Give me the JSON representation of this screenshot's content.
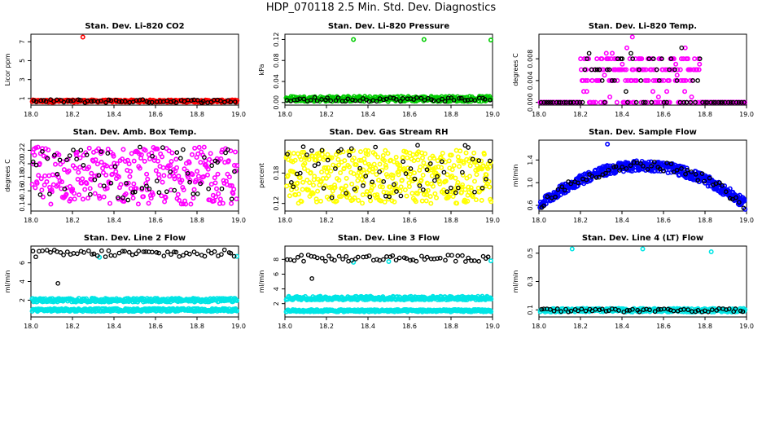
{
  "page_title": "HDP_070118  2.5 Min. Std. Dev. Diagnostics",
  "chart_data": [
    {
      "type": "scatter",
      "title": "Stan. Dev. Li-820 CO2",
      "ylabel": "Licor ppm",
      "xlim": [
        18.0,
        19.0
      ],
      "ylim": [
        0.3,
        7.8
      ],
      "xticks": [
        "18.0",
        "18.2",
        "18.4",
        "18.6",
        "18.8",
        "19.0"
      ],
      "xtick_values": [
        18.0,
        18.2,
        18.4,
        18.6,
        18.8,
        19.0
      ],
      "yticks": [
        "1",
        "3",
        "5",
        "7"
      ],
      "ytick_values": [
        1,
        3,
        5,
        7
      ],
      "series": [
        {
          "name": "main",
          "color": "#ff0000",
          "band": [
            0.6,
            0.85
          ],
          "count": 300,
          "outliers": [
            [
              18.25,
              7.5
            ]
          ]
        },
        {
          "name": "black",
          "color": "#000000",
          "band": [
            0.55,
            0.9
          ],
          "count": 60,
          "outliers": []
        }
      ]
    },
    {
      "type": "scatter",
      "title": "Stan. Dev. Li-820 Pressure",
      "ylabel": "kPa",
      "xlim": [
        18.0,
        19.0
      ],
      "ylim": [
        -0.005,
        0.13
      ],
      "xticks": [
        "18.0",
        "18.2",
        "18.4",
        "18.6",
        "18.8",
        "19.0"
      ],
      "xtick_values": [
        18.0,
        18.2,
        18.4,
        18.6,
        18.8,
        19.0
      ],
      "yticks": [
        "0.00",
        "0.04",
        "0.08",
        "0.12"
      ],
      "ytick_values": [
        0.0,
        0.04,
        0.08,
        0.12
      ],
      "series": [
        {
          "name": "main",
          "color": "#00cc00",
          "band": [
            0.002,
            0.012
          ],
          "count": 300,
          "outliers": [
            [
              18.33,
              0.12
            ],
            [
              18.67,
              0.12
            ],
            [
              19.0,
              0.119
            ]
          ]
        },
        {
          "name": "black",
          "color": "#000000",
          "band": [
            0.002,
            0.01
          ],
          "count": 60,
          "outliers": []
        }
      ]
    },
    {
      "type": "scatter",
      "title": "Stan. Dev. Li-820 Temp.",
      "ylabel": "degrees C",
      "xlim": [
        18.0,
        19.0
      ],
      "ylim": [
        -0.0005,
        0.0125
      ],
      "xticks": [
        "18.0",
        "18.2",
        "18.4",
        "18.6",
        "18.8",
        "19.0"
      ],
      "xtick_values": [
        18.0,
        18.2,
        18.4,
        18.6,
        18.8,
        19.0
      ],
      "yticks": [
        "0.000",
        "0.004",
        "0.008"
      ],
      "ytick_values": [
        0.0,
        0.004,
        0.008
      ],
      "series": [
        {
          "name": "main",
          "color": "#ff00ff",
          "levels": [
            0.0,
            0.004,
            0.006,
            0.008
          ],
          "count": 330,
          "outliers": [
            [
              18.45,
              0.012
            ]
          ]
        },
        {
          "name": "black",
          "color": "#000000",
          "levels": [
            0.0,
            0.004,
            0.006,
            0.008
          ],
          "count": 80,
          "outliers": []
        }
      ]
    },
    {
      "type": "scatter",
      "title": "Stan. Dev. Amb. Box Temp.",
      "ylabel": "degrees C",
      "xlim": [
        18.0,
        19.0
      ],
      "ylim": [
        0.13,
        0.235
      ],
      "xticks": [
        "18.0",
        "18.2",
        "18.4",
        "18.6",
        "18.8",
        "19.0"
      ],
      "xtick_values": [
        18.0,
        18.2,
        18.4,
        18.6,
        18.8,
        19.0
      ],
      "yticks": [
        "0.14",
        "0.16",
        "0.18",
        "0.20",
        "0.22"
      ],
      "ytick_values": [
        0.14,
        0.16,
        0.18,
        0.2,
        0.22
      ],
      "series": [
        {
          "name": "main",
          "color": "#ff00ff",
          "band": [
            0.14,
            0.225
          ],
          "count": 320,
          "outliers": []
        },
        {
          "name": "black",
          "color": "#000000",
          "band": [
            0.145,
            0.225
          ],
          "count": 60,
          "outliers": []
        }
      ]
    },
    {
      "type": "scatter",
      "title": "Stan. Dev. Gas Stream RH",
      "ylabel": "percent",
      "xlim": [
        18.0,
        19.0
      ],
      "ylim": [
        0.105,
        0.245
      ],
      "xticks": [
        "18.0",
        "18.2",
        "18.4",
        "18.6",
        "18.8",
        "19.0"
      ],
      "xtick_values": [
        18.0,
        18.2,
        18.4,
        18.6,
        18.8,
        19.0
      ],
      "yticks": [
        "0.12",
        "0.18"
      ],
      "ytick_values": [
        0.12,
        0.18
      ],
      "series": [
        {
          "name": "main",
          "color": "#ffff00",
          "band": [
            0.12,
            0.225
          ],
          "count": 450,
          "outliers": []
        },
        {
          "name": "black",
          "color": "#000000",
          "band": [
            0.13,
            0.235
          ],
          "count": 60,
          "outliers": []
        }
      ]
    },
    {
      "type": "scatter",
      "title": "Stan. Dev. Sample Flow",
      "ylabel": "ml/min",
      "xlim": [
        18.0,
        19.0
      ],
      "ylim": [
        0.5,
        1.75
      ],
      "xticks": [
        "18.0",
        "18.2",
        "18.4",
        "18.6",
        "18.8",
        "19.0"
      ],
      "xtick_values": [
        18.0,
        18.2,
        18.4,
        18.6,
        18.8,
        19.0
      ],
      "yticks": [
        "0.6",
        "1.0",
        "1.4"
      ],
      "ytick_values": [
        0.6,
        1.0,
        1.4
      ],
      "series": [
        {
          "name": "main",
          "color": "#0000ff",
          "curve": "arch",
          "base": 0.6,
          "peak": 1.3,
          "count": 450,
          "outliers": [
            [
              18.33,
              1.68
            ]
          ]
        },
        {
          "name": "black",
          "color": "#000000",
          "curve": "arch",
          "base": 0.6,
          "peak": 1.3,
          "count": 60,
          "outliers": []
        }
      ]
    },
    {
      "type": "scatter",
      "title": "Stan. Dev. Line 2 Flow",
      "ylabel": "ml/min",
      "xlim": [
        18.0,
        19.0
      ],
      "ylim": [
        0.2,
        7.8
      ],
      "xticks": [
        "18.0",
        "18.2",
        "18.4",
        "18.6",
        "18.8",
        "19.0"
      ],
      "xtick_values": [
        18.0,
        18.2,
        18.4,
        18.6,
        18.8,
        19.0
      ],
      "yticks": [
        "2",
        "4",
        "6"
      ],
      "ytick_values": [
        2,
        4,
        6
      ],
      "series": [
        {
          "name": "cyan-upper",
          "color": "#00e5e5",
          "band": [
            1.8,
            2.2
          ],
          "count": 300,
          "outliers": [
            [
              18.33,
              6.6
            ],
            [
              19.0,
              6.7
            ]
          ]
        },
        {
          "name": "cyan-lower",
          "color": "#00e5e5",
          "band": [
            0.8,
            1.1
          ],
          "count": 300,
          "outliers": []
        },
        {
          "name": "black",
          "color": "#000000",
          "band": [
            6.6,
            7.4
          ],
          "count": 60,
          "outliers": [
            [
              18.13,
              3.8
            ]
          ]
        }
      ]
    },
    {
      "type": "scatter",
      "title": "Stan. Dev. Line 3 Flow",
      "ylabel": "ml/min",
      "xlim": [
        18.0,
        19.0
      ],
      "ylim": [
        0.2,
        9.8
      ],
      "xticks": [
        "18.0",
        "18.2",
        "18.4",
        "18.6",
        "18.8",
        "19.0"
      ],
      "xtick_values": [
        18.0,
        18.2,
        18.4,
        18.6,
        18.8,
        19.0
      ],
      "yticks": [
        "2",
        "4",
        "6",
        "8"
      ],
      "ytick_values": [
        2,
        4,
        6,
        8
      ],
      "series": [
        {
          "name": "cyan-upper",
          "color": "#00e5e5",
          "band": [
            2.5,
            3.0
          ],
          "count": 300,
          "outliers": [
            [
              18.33,
              7.6
            ],
            [
              18.5,
              7.7
            ],
            [
              19.0,
              7.8
            ]
          ]
        },
        {
          "name": "cyan-lower",
          "color": "#00e5e5",
          "band": [
            0.9,
            1.2
          ],
          "count": 300,
          "outliers": []
        },
        {
          "name": "black",
          "color": "#000000",
          "band": [
            7.7,
            8.6
          ],
          "count": 60,
          "outliers": [
            [
              18.13,
              5.4
            ]
          ]
        }
      ]
    },
    {
      "type": "scatter",
      "title": "Stan. Dev. Line 4 (LT) Flow",
      "ylabel": "ml/min",
      "xlim": [
        18.0,
        19.0
      ],
      "ylim": [
        0.05,
        0.55
      ],
      "xticks": [
        "18.0",
        "18.2",
        "18.4",
        "18.6",
        "18.8",
        "19.0"
      ],
      "xtick_values": [
        18.0,
        18.2,
        18.4,
        18.6,
        18.8,
        19.0
      ],
      "yticks": [
        "0.1",
        "0.3",
        "0.5"
      ],
      "ytick_values": [
        0.1,
        0.3,
        0.5
      ],
      "series": [
        {
          "name": "main",
          "color": "#00e5e5",
          "band": [
            0.085,
            0.11
          ],
          "count": 320,
          "outliers": [
            [
              18.16,
              0.53
            ],
            [
              18.5,
              0.53
            ],
            [
              18.83,
              0.51
            ]
          ]
        },
        {
          "name": "black",
          "color": "#000000",
          "band": [
            0.085,
            0.11
          ],
          "count": 60,
          "outliers": []
        }
      ]
    }
  ]
}
